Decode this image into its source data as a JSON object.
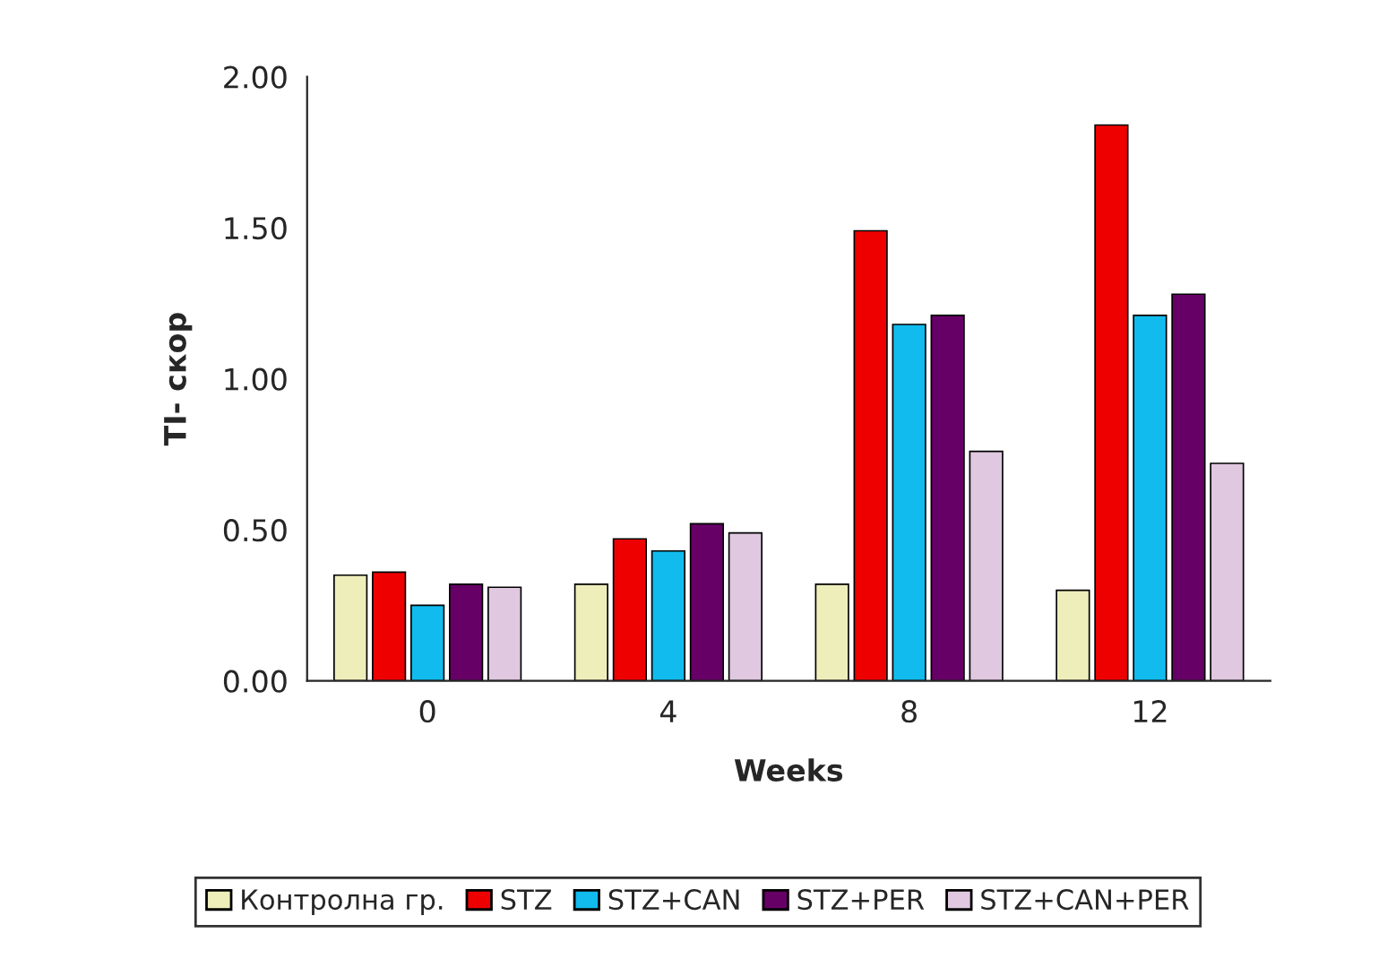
{
  "chart_data": {
    "type": "bar",
    "xlabel": "Weeks",
    "ylabel": "TI- скор",
    "categories": [
      "0",
      "4",
      "8",
      "12"
    ],
    "series": [
      {
        "name": "Контролна гр.",
        "color": "#eeeebb",
        "values": [
          0.35,
          0.32,
          0.32,
          0.3
        ]
      },
      {
        "name": "STZ",
        "color": "#ee0000",
        "values": [
          0.36,
          0.47,
          1.49,
          1.84
        ]
      },
      {
        "name": "STZ+CAN",
        "color": "#11bbee",
        "values": [
          0.25,
          0.43,
          1.18,
          1.21
        ]
      },
      {
        "name": "STZ+PER",
        "color": "#660066",
        "values": [
          0.32,
          0.52,
          1.21,
          1.28
        ]
      },
      {
        "name": "STZ+CAN+PER",
        "color": "#e0c8e0",
        "values": [
          0.31,
          0.49,
          0.76,
          0.72
        ]
      }
    ],
    "ylim": [
      0,
      2
    ],
    "yticks": [
      {
        "value": 0,
        "label": "0.00"
      },
      {
        "value": 0.5,
        "label": "0.50"
      },
      {
        "value": 1,
        "label": "1.00"
      },
      {
        "value": 1.5,
        "label": "1.50"
      },
      {
        "value": 2,
        "label": "2.00"
      }
    ],
    "grid": false,
    "legend": "bottom"
  }
}
